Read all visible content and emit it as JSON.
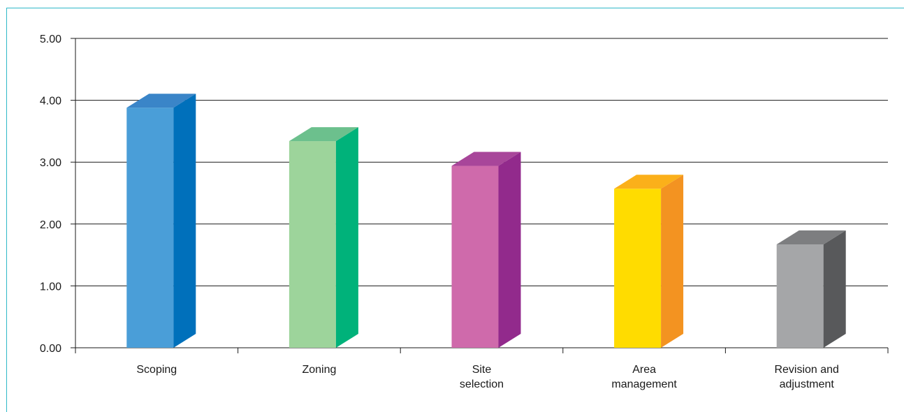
{
  "chart_data": {
    "type": "bar",
    "categories": [
      [
        "Scoping"
      ],
      [
        "Zoning"
      ],
      [
        "Site",
        "selection"
      ],
      [
        "Area",
        "management"
      ],
      [
        "Revision and",
        "adjustment"
      ]
    ],
    "values": [
      3.88,
      3.34,
      2.94,
      2.57,
      1.67
    ],
    "y_ticks": [
      "0.00",
      "1.00",
      "2.00",
      "3.00",
      "4.00",
      "5.00"
    ],
    "ylim": [
      0,
      5
    ],
    "grid": true,
    "colors": [
      {
        "front": "#4a9ed8",
        "side": "#0070bb",
        "top": "#3a85c8"
      },
      {
        "front": "#9dd49b",
        "side": "#00b27a",
        "top": "#6cc08d"
      },
      {
        "front": "#cf6aab",
        "side": "#922a8c",
        "top": "#a8469a"
      },
      {
        "front": "#ffdc00",
        "side": "#f39321",
        "top": "#fbb01a"
      },
      {
        "front": "#a5a6a8",
        "side": "#58595b",
        "top": "#7d7e80"
      }
    ]
  }
}
